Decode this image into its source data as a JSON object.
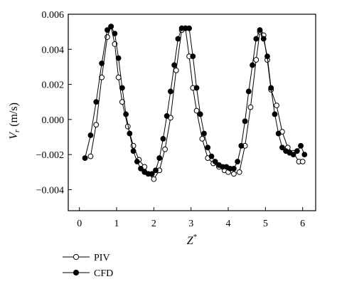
{
  "chart_data": {
    "type": "line",
    "xlabel": "Z*",
    "xlabel_main": "Z",
    "xlabel_sup": "*",
    "ylabel": "V_r (m/s)",
    "ylabel_main": "V",
    "ylabel_sub": "r",
    "ylabel_unit": " (m/s)",
    "xlim": [
      -0.3,
      6.35
    ],
    "ylim": [
      -0.0052,
      0.006
    ],
    "x_ticks": [
      0,
      1,
      2,
      3,
      4,
      5,
      6
    ],
    "x_tick_labels": [
      "0",
      "1",
      "2",
      "3",
      "4",
      "5",
      "6"
    ],
    "y_ticks": [
      -0.004,
      -0.002,
      0.0,
      0.002,
      0.004,
      0.006
    ],
    "y_tick_labels": [
      "−0.004",
      "−0.002",
      "0.000",
      "0.002",
      "0.004",
      "0.006"
    ],
    "grid": false,
    "legend_position": "bottom-left, below plot",
    "series": [
      {
        "name": "PIV",
        "marker": "open-circle",
        "color": "#000000",
        "x": [
          0.3,
          0.45,
          0.6,
          0.75,
          0.85,
          0.95,
          1.05,
          1.15,
          1.3,
          1.45,
          1.6,
          1.75,
          1.85,
          2.0,
          2.15,
          2.3,
          2.45,
          2.6,
          2.75,
          2.85,
          2.95,
          3.05,
          3.15,
          3.3,
          3.45,
          3.6,
          3.75,
          3.9,
          4.0,
          4.15,
          4.3,
          4.45,
          4.6,
          4.75,
          4.85,
          4.95,
          5.05,
          5.15,
          5.3,
          5.45,
          5.6,
          5.75,
          5.9,
          6.0
        ],
        "y": [
          -0.0021,
          -0.0003,
          0.0024,
          0.0047,
          0.0053,
          0.0043,
          0.0024,
          0.001,
          -0.0004,
          -0.0015,
          -0.0023,
          -0.0027,
          -0.0031,
          -0.0034,
          -0.0029,
          -0.0017,
          0.0001,
          0.0028,
          0.0051,
          0.0052,
          0.0036,
          0.0018,
          0.0005,
          -0.0011,
          -0.0022,
          -0.0025,
          -0.0027,
          -0.0029,
          -0.003,
          -0.0031,
          -0.003,
          -0.0015,
          0.0007,
          0.0034,
          0.005,
          0.0048,
          0.0034,
          0.0017,
          0.0008,
          -0.0007,
          -0.0016,
          -0.0019,
          -0.0024,
          -0.0024
        ]
      },
      {
        "name": "CFD",
        "marker": "filled-circle",
        "color": "#000000",
        "x": [
          0.15,
          0.3,
          0.45,
          0.6,
          0.75,
          0.85,
          0.95,
          1.05,
          1.15,
          1.25,
          1.35,
          1.45,
          1.55,
          1.65,
          1.75,
          1.85,
          1.95,
          2.05,
          2.15,
          2.25,
          2.35,
          2.45,
          2.55,
          2.65,
          2.75,
          2.85,
          2.95,
          3.05,
          3.15,
          3.25,
          3.35,
          3.45,
          3.55,
          3.65,
          3.75,
          3.85,
          3.95,
          4.05,
          4.15,
          4.25,
          4.35,
          4.45,
          4.55,
          4.65,
          4.75,
          4.85,
          4.95,
          5.05,
          5.15,
          5.25,
          5.35,
          5.45,
          5.55,
          5.65,
          5.75,
          5.85,
          5.95,
          6.05
        ],
        "y": [
          -0.0022,
          -0.0009,
          0.001,
          0.0032,
          0.0051,
          0.0053,
          0.0049,
          0.0035,
          0.0018,
          0.0003,
          -0.0008,
          -0.0018,
          -0.0024,
          -0.0028,
          -0.003,
          -0.0031,
          -0.0031,
          -0.0029,
          -0.0022,
          -0.0011,
          0.0002,
          0.0016,
          0.0031,
          0.0046,
          0.0052,
          0.0052,
          0.0052,
          0.0036,
          0.0018,
          0.0003,
          -0.0008,
          -0.0016,
          -0.0021,
          -0.0024,
          -0.0026,
          -0.0027,
          -0.0027,
          -0.0028,
          -0.0028,
          -0.0024,
          -0.0015,
          -0.0001,
          0.0016,
          0.0031,
          0.0046,
          0.0051,
          0.0046,
          0.0036,
          0.0018,
          0.0003,
          -0.0008,
          -0.0016,
          -0.0018,
          -0.0019,
          -0.002,
          -0.0018,
          -0.0015,
          -0.002
        ]
      }
    ]
  }
}
